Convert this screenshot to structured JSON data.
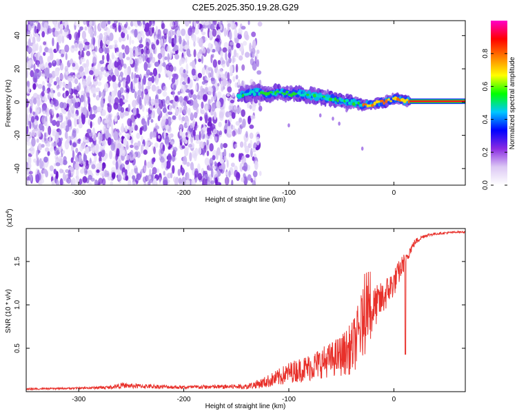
{
  "title": "C2E5.2025.350.19.28.G29",
  "chart_data": [
    {
      "type": "heatmap",
      "title": "C2E5.2025.350.19.28.G29",
      "xlabel": "Height of straight line (km)",
      "ylabel": "Frequency (Hz)",
      "xlim": [
        -350,
        68
      ],
      "ylim": [
        -50,
        49
      ],
      "xticks": [
        -300,
        -200,
        -100,
        0
      ],
      "xtick_labels": [
        "-300",
        "-200",
        "-100",
        "0"
      ],
      "yticks": [
        -40,
        -20,
        0,
        20,
        40
      ],
      "ytick_labels": [
        "-40",
        "-20",
        "0",
        "20",
        "40"
      ],
      "noise_region_x": [
        -350,
        -135
      ],
      "signal_trace": {
        "x": [
          -148,
          -140,
          -130,
          -120,
          -110,
          -100,
          -90,
          -80,
          -70,
          -60,
          -50,
          -40,
          -30,
          -20,
          -10,
          0,
          10,
          20,
          30,
          40,
          50,
          60,
          68
        ],
        "y": [
          4,
          5,
          6,
          5,
          6,
          5,
          5,
          4,
          3,
          2,
          1,
          0,
          -2,
          -1,
          0,
          2,
          1,
          0.5,
          0.5,
          0.5,
          0.5,
          0.5,
          0.5
        ]
      },
      "colorbar": {
        "label": "Normalized spectral amplitude",
        "range": [
          0.0,
          1.0
        ],
        "ticks": [
          0.0,
          0.2,
          0.4,
          0.6,
          0.8
        ],
        "tick_labels": [
          "0.0",
          "0.2",
          "0.4",
          "0.6",
          "0.8"
        ],
        "colors": [
          "#ffffff",
          "#dcc8f4",
          "#8a2be2",
          "#0000ff",
          "#00c8ff",
          "#00ff00",
          "#ffff00",
          "#ff8000",
          "#ff0000",
          "#ff00c8"
        ]
      }
    },
    {
      "type": "line",
      "xlabel": "Height of straight line (km)",
      "ylabel": "SNR (10 * v/v)",
      "yunit": "(x10",
      "yunit_exp": "4",
      "yunit_close": ")",
      "xlim": [
        -350,
        68
      ],
      "ylim": [
        0.0,
        1.88
      ],
      "xticks": [
        -300,
        -200,
        -100,
        0
      ],
      "xtick_labels": [
        "-300",
        "-200",
        "-100",
        "0"
      ],
      "yticks": [
        0.5,
        1.0,
        1.5
      ],
      "ytick_labels": [
        "0.5",
        "1.0",
        "1.5"
      ],
      "series": [
        {
          "name": "SNR",
          "color": "#e8302a",
          "x": [
            -350,
            -300,
            -270,
            -260,
            -200,
            -140,
            -125,
            -110,
            -100,
            -90,
            -80,
            -70,
            -60,
            -50,
            -40,
            -35,
            -30,
            -25,
            -22,
            -20,
            -15,
            -10,
            -5,
            0,
            5,
            10,
            15,
            20,
            25,
            30,
            40,
            50,
            60,
            68
          ],
          "y": [
            0.03,
            0.04,
            0.05,
            0.07,
            0.05,
            0.06,
            0.1,
            0.16,
            0.22,
            0.25,
            0.28,
            0.33,
            0.37,
            0.42,
            0.5,
            0.62,
            0.78,
            0.82,
            0.85,
            0.95,
            1.02,
            1.08,
            1.18,
            1.25,
            1.38,
            1.5,
            1.62,
            1.72,
            1.77,
            1.8,
            1.82,
            1.83,
            1.84,
            1.84
          ],
          "noise_amplitude": [
            0.01,
            0.01,
            0.02,
            0.03,
            0.02,
            0.03,
            0.06,
            0.1,
            0.12,
            0.14,
            0.16,
            0.18,
            0.2,
            0.24,
            0.3,
            0.35,
            0.4,
            0.4,
            0.38,
            0.25,
            0.22,
            0.2,
            0.18,
            0.16,
            0.14,
            0.1,
            0.06,
            0.04,
            0.03,
            0.02,
            0.015,
            0.012,
            0.01,
            0.01
          ]
        }
      ]
    }
  ]
}
